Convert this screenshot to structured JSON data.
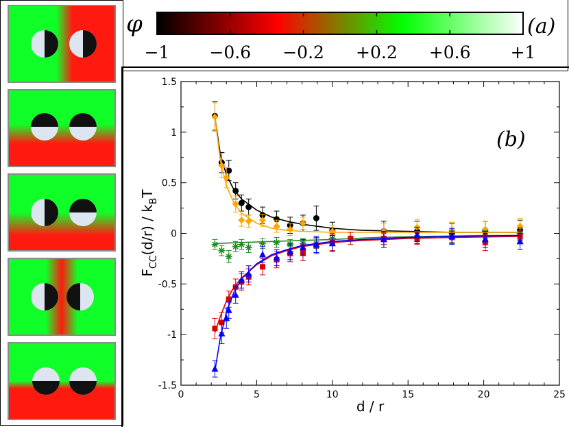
{
  "panel_colors": {
    "red": "#ff1a10",
    "green": "#10ff28",
    "black": "#111111",
    "disk": "#dde6f0"
  },
  "colorbar": {
    "symbol": "φ",
    "label": "(a)",
    "ticks": [
      "−1",
      "−0.6",
      "−0.2",
      "+0.2",
      "+0.6",
      "+1"
    ],
    "colors": [
      "#000000",
      "#ff0000",
      "#00ff00",
      "#ffffff"
    ]
  },
  "chart_data": {
    "type": "scatter",
    "panel_label": "(b)",
    "xlabel": "d / r",
    "ylabel": "F",
    "ylabel_sub": "CC",
    "ylabel_mid": "(d/r) / k",
    "ylabel_sub2": "B",
    "ylabel_end": "T",
    "xlim": [
      0,
      25
    ],
    "ylim": [
      -1.5,
      1.5
    ],
    "x_ticks": [
      "0",
      "5",
      "10",
      "15",
      "20",
      "25"
    ],
    "y_ticks": [
      "-1.5",
      "-1",
      "-0.5",
      "0",
      "0.5",
      "1",
      "1.5"
    ],
    "grid": false,
    "series": [
      {
        "color": "#000000",
        "marker": "circle",
        "x": [
          2.24,
          2.69,
          3.16,
          3.61,
          4.0,
          4.47,
          5.39,
          6.32,
          7.21,
          8.06,
          8.94,
          10.0,
          13.4,
          15.6,
          17.9,
          20.1,
          22.4
        ],
        "y": [
          1.16,
          0.7,
          0.62,
          0.42,
          0.3,
          0.26,
          0.18,
          0.14,
          0.08,
          0.1,
          0.15,
          0.03,
          0.02,
          0.02,
          0.0,
          0.02,
          0.03
        ],
        "err": [
          0.14,
          0.1,
          0.1,
          0.08,
          0.08,
          0.08,
          0.08,
          0.08,
          0.08,
          0.08,
          0.12,
          0.08,
          0.1,
          0.1,
          0.1,
          0.1,
          0.1
        ],
        "fit_x": [
          2.24,
          2.6,
          3.0,
          3.5,
          4.0,
          5.0,
          6.0,
          7.0,
          8.0,
          10.0,
          12.0,
          15.0,
          18.0,
          22.4
        ],
        "fit_y": [
          1.15,
          0.78,
          0.58,
          0.43,
          0.34,
          0.23,
          0.16,
          0.12,
          0.09,
          0.05,
          0.03,
          0.02,
          0.01,
          0.01
        ]
      },
      {
        "color": "#ffa500",
        "marker": "diamond",
        "x": [
          2.24,
          2.69,
          3.0,
          3.61,
          4.0,
          4.47,
          5.39,
          6.32,
          7.21,
          8.06,
          10.0,
          13.4,
          15.6,
          17.9,
          20.1,
          22.4
        ],
        "y": [
          1.15,
          0.67,
          0.55,
          0.29,
          0.13,
          0.12,
          0.13,
          0.07,
          0.04,
          0.1,
          0.02,
          0.02,
          0.06,
          0.03,
          0.04,
          0.07
        ],
        "err": [
          0.14,
          0.12,
          0.1,
          0.08,
          0.06,
          0.06,
          0.06,
          0.06,
          0.06,
          0.06,
          0.06,
          0.08,
          0.08,
          0.08,
          0.08,
          0.08
        ],
        "fit_x": [
          2.24,
          2.6,
          3.0,
          3.5,
          4.0,
          5.0,
          6.0,
          7.0,
          8.0,
          10.0,
          12.0,
          15.0,
          18.0,
          22.4
        ],
        "fit_y": [
          1.15,
          0.72,
          0.47,
          0.3,
          0.2,
          0.1,
          0.05,
          0.03,
          0.02,
          0.01,
          0.01,
          0.01,
          0.01,
          0.01
        ]
      },
      {
        "color": "#228b22",
        "marker": "star",
        "x": [
          2.24,
          2.69,
          3.16,
          3.61,
          4.0,
          4.47,
          5.39,
          6.32,
          7.21,
          8.06,
          8.94,
          10.0,
          13.4,
          15.6,
          17.9,
          20.1,
          22.4
        ],
        "y": [
          -0.11,
          -0.17,
          -0.23,
          -0.13,
          -0.11,
          -0.14,
          -0.1,
          -0.09,
          -0.11,
          -0.1,
          -0.1,
          -0.05,
          -0.05,
          -0.04,
          -0.03,
          -0.03,
          0.0
        ],
        "err": [
          0.05,
          0.05,
          0.06,
          0.05,
          0.05,
          0.05,
          0.05,
          0.05,
          0.05,
          0.05,
          0.05,
          0.05,
          0.06,
          0.06,
          0.06,
          0.06,
          0.06
        ],
        "fit_x": [
          2.24,
          4.0,
          6.0,
          8.0,
          10.0,
          13.0,
          16.0,
          20.0,
          22.4
        ],
        "fit_y": [
          -0.1,
          -0.09,
          -0.08,
          -0.07,
          -0.06,
          -0.04,
          -0.03,
          -0.02,
          -0.02
        ]
      },
      {
        "color": "#dd0000",
        "marker": "square",
        "x": [
          2.24,
          2.69,
          3.16,
          3.61,
          4.0,
          4.47,
          5.39,
          6.32,
          7.21,
          8.06,
          8.94,
          10.0,
          11.2,
          13.4,
          15.6,
          17.9,
          20.1,
          22.4
        ],
        "y": [
          -0.94,
          -0.88,
          -0.65,
          -0.53,
          -0.48,
          -0.43,
          -0.33,
          -0.26,
          -0.2,
          -0.19,
          -0.12,
          -0.09,
          -0.05,
          -0.05,
          -0.05,
          -0.04,
          -0.09,
          -0.03
        ],
        "err": [
          0.1,
          0.1,
          0.08,
          0.08,
          0.08,
          0.08,
          0.08,
          0.08,
          0.08,
          0.08,
          0.08,
          0.08,
          0.06,
          0.06,
          0.06,
          0.06,
          0.08,
          0.06
        ],
        "fit_x": [
          2.24,
          2.6,
          3.0,
          3.5,
          4.0,
          5.0,
          6.0,
          7.0,
          8.0,
          10.0,
          12.0,
          15.0,
          18.0,
          22.4
        ],
        "fit_y": [
          -0.98,
          -0.82,
          -0.67,
          -0.53,
          -0.44,
          -0.31,
          -0.22,
          -0.17,
          -0.13,
          -0.09,
          -0.07,
          -0.05,
          -0.04,
          -0.03
        ]
      },
      {
        "color": "#0000ff",
        "marker": "triangle",
        "x": [
          2.24,
          2.69,
          3.0,
          3.16,
          3.61,
          4.0,
          4.47,
          5.39,
          6.32,
          7.21,
          8.06,
          8.94,
          10.0,
          13.4,
          15.6,
          17.9,
          20.1,
          22.4
        ],
        "y": [
          -1.34,
          -0.99,
          -0.84,
          -0.76,
          -0.61,
          -0.46,
          -0.4,
          -0.21,
          -0.24,
          -0.18,
          -0.14,
          -0.11,
          -0.1,
          -0.06,
          -0.02,
          -0.03,
          -0.06,
          -0.08
        ],
        "err": [
          0.08,
          0.1,
          0.1,
          0.08,
          0.08,
          0.08,
          0.08,
          0.08,
          0.08,
          0.08,
          0.08,
          0.08,
          0.08,
          0.08,
          0.08,
          0.08,
          0.08,
          0.08
        ],
        "fit_x": [
          2.24,
          2.6,
          3.0,
          3.5,
          4.0,
          5.0,
          6.0,
          7.0,
          8.0,
          10.0,
          12.0,
          15.0,
          18.0,
          22.4
        ],
        "fit_y": [
          -1.36,
          -1.03,
          -0.78,
          -0.58,
          -0.45,
          -0.3,
          -0.21,
          -0.16,
          -0.12,
          -0.08,
          -0.06,
          -0.04,
          -0.03,
          -0.02
        ]
      }
    ]
  }
}
